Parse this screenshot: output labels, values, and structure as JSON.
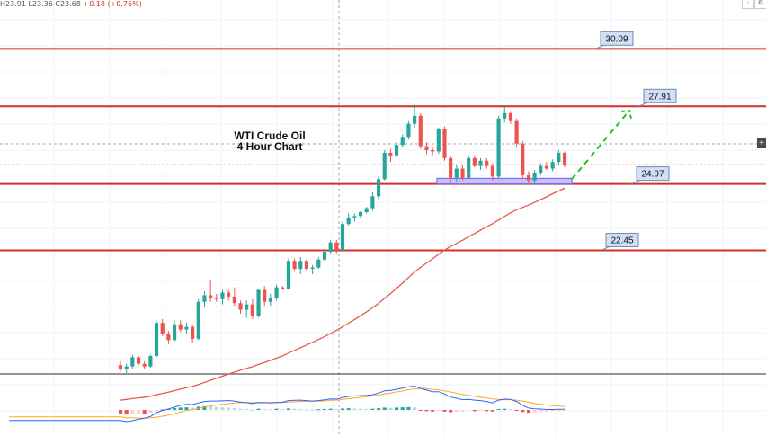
{
  "header": {
    "ohlc_text": "H23.91  L23.36  C23.68",
    "change_text": "+0.18 (+0.76%)"
  },
  "toolbar": {
    "arrow_icon": "down-arrow-icon",
    "copy_icon": "copy-icon",
    "plus_icon": "plus-icon"
  },
  "colors": {
    "up": "#26a69a",
    "down": "#ef5350",
    "level": "#d32f2f",
    "ma": "#e8594a",
    "macd": "#2962ff",
    "signal": "#ffa726",
    "arrow": "#19c719",
    "zone": "#7b6cf6"
  },
  "chart_data": [
    {
      "type": "candlestick",
      "title": "WTI Crude Oil\n4 Hour Chart",
      "ylim": [
        17.8,
        31.6
      ],
      "grid": true,
      "levels": [
        30.09,
        27.91,
        24.97,
        22.45
      ],
      "support_zone": [
        24.97,
        25.18
      ],
      "candles": [
        [
          18.1,
          18.25,
          17.85,
          17.95
        ],
        [
          17.95,
          18.15,
          17.8,
          18.05
        ],
        [
          18.05,
          18.5,
          17.95,
          18.4
        ],
        [
          18.4,
          18.45,
          18.1,
          18.15
        ],
        [
          18.15,
          18.25,
          17.95,
          18.05
        ],
        [
          18.05,
          18.5,
          18.0,
          18.45
        ],
        [
          18.45,
          19.8,
          18.4,
          19.7
        ],
        [
          19.7,
          19.85,
          19.2,
          19.3
        ],
        [
          19.3,
          19.4,
          18.9,
          19.05
        ],
        [
          19.05,
          19.8,
          19.0,
          19.65
        ],
        [
          19.65,
          19.8,
          19.35,
          19.45
        ],
        [
          19.45,
          19.7,
          19.3,
          19.55
        ],
        [
          19.55,
          19.65,
          18.95,
          19.1
        ],
        [
          19.1,
          20.6,
          19.05,
          20.5
        ],
        [
          20.5,
          20.9,
          20.3,
          20.75
        ],
        [
          20.75,
          21.3,
          20.5,
          20.65
        ],
        [
          20.65,
          20.8,
          20.5,
          20.6
        ],
        [
          20.6,
          20.95,
          20.4,
          20.85
        ],
        [
          20.85,
          20.95,
          20.55,
          20.7
        ],
        [
          20.7,
          21.05,
          20.35,
          20.45
        ],
        [
          20.45,
          20.55,
          20.05,
          20.2
        ],
        [
          20.2,
          20.55,
          19.9,
          20.4
        ],
        [
          20.4,
          20.6,
          19.85,
          19.95
        ],
        [
          19.95,
          21.0,
          19.9,
          20.95
        ],
        [
          20.95,
          21.1,
          20.35,
          20.5
        ],
        [
          20.5,
          20.8,
          20.35,
          20.65
        ],
        [
          20.65,
          21.15,
          20.55,
          21.05
        ],
        [
          21.05,
          21.1,
          20.95,
          21.0
        ],
        [
          21.0,
          22.15,
          20.95,
          22.05
        ],
        [
          22.05,
          22.15,
          21.65,
          21.75
        ],
        [
          21.75,
          22.2,
          21.55,
          22.05
        ],
        [
          22.05,
          22.1,
          21.65,
          21.75
        ],
        [
          21.75,
          21.9,
          21.55,
          21.8
        ],
        [
          21.8,
          22.2,
          21.75,
          22.1
        ],
        [
          22.1,
          22.45,
          22.05,
          22.4
        ],
        [
          22.4,
          22.85,
          22.3,
          22.75
        ],
        [
          22.75,
          22.85,
          22.35,
          22.45
        ],
        [
          22.45,
          23.55,
          22.4,
          23.45
        ],
        [
          23.45,
          23.85,
          23.4,
          23.7
        ],
        [
          23.7,
          23.85,
          23.55,
          23.75
        ],
        [
          23.75,
          23.95,
          23.65,
          23.9
        ],
        [
          23.9,
          24.1,
          23.85,
          24.05
        ],
        [
          24.05,
          24.65,
          23.95,
          24.5
        ],
        [
          24.5,
          25.25,
          24.4,
          25.15
        ],
        [
          25.15,
          26.25,
          25.1,
          26.15
        ],
        [
          26.15,
          26.3,
          25.8,
          26.05
        ],
        [
          26.05,
          26.55,
          26.0,
          26.45
        ],
        [
          26.45,
          26.85,
          26.35,
          26.75
        ],
        [
          26.75,
          27.35,
          26.65,
          27.25
        ],
        [
          27.25,
          28.0,
          27.1,
          27.55
        ],
        [
          27.55,
          27.65,
          26.3,
          26.4
        ],
        [
          26.4,
          26.55,
          26.1,
          26.25
        ],
        [
          26.25,
          26.35,
          26.05,
          26.2
        ],
        [
          26.2,
          27.1,
          26.1,
          27.05
        ],
        [
          27.05,
          27.15,
          25.85,
          25.95
        ],
        [
          25.95,
          26.05,
          24.95,
          25.2
        ],
        [
          25.2,
          25.7,
          25.05,
          25.55
        ],
        [
          25.55,
          25.7,
          25.1,
          25.2
        ],
        [
          25.2,
          26.05,
          25.15,
          25.95
        ],
        [
          25.95,
          26.05,
          25.6,
          25.65
        ],
        [
          25.65,
          25.95,
          25.5,
          25.85
        ],
        [
          25.85,
          25.95,
          25.55,
          25.65
        ],
        [
          25.65,
          25.75,
          25.1,
          25.25
        ],
        [
          25.25,
          27.55,
          25.2,
          27.45
        ],
        [
          27.45,
          27.9,
          27.3,
          27.65
        ],
        [
          27.65,
          27.7,
          27.25,
          27.35
        ],
        [
          27.35,
          27.45,
          26.35,
          26.5
        ],
        [
          26.5,
          26.6,
          25.15,
          25.3
        ],
        [
          25.3,
          25.45,
          24.95,
          25.1
        ],
        [
          25.1,
          25.5,
          24.95,
          25.4
        ],
        [
          25.4,
          25.75,
          25.3,
          25.65
        ],
        [
          25.65,
          25.8,
          25.5,
          25.55
        ],
        [
          25.55,
          25.9,
          25.45,
          25.8
        ],
        [
          25.8,
          26.25,
          25.7,
          26.15
        ],
        [
          26.15,
          26.2,
          25.6,
          25.7
        ]
      ],
      "ma_period": 50,
      "forecast_arrow": {
        "from": 25.15,
        "to": 27.75
      }
    },
    {
      "type": "bar",
      "indicator": "MACD",
      "histogram": [
        -0.18,
        -0.2,
        -0.17,
        -0.15,
        -0.16,
        -0.12,
        -0.05,
        0.02,
        0.04,
        0.08,
        0.1,
        0.11,
        0.1,
        0.14,
        0.16,
        0.15,
        0.12,
        0.11,
        0.1,
        0.08,
        0.05,
        0.04,
        0.02,
        0.05,
        0.04,
        0.03,
        0.05,
        0.04,
        0.06,
        0.05,
        0.04,
        0.03,
        0.02,
        0.03,
        0.04,
        0.05,
        0.04,
        0.06,
        0.07,
        0.06,
        0.05,
        0.04,
        0.05,
        0.07,
        0.1,
        0.09,
        0.1,
        0.11,
        0.12,
        0.11,
        -0.02,
        -0.05,
        -0.07,
        -0.03,
        -0.07,
        -0.1,
        -0.08,
        -0.07,
        -0.03,
        -0.05,
        -0.04,
        -0.05,
        -0.07,
        0.04,
        0.05,
        0.04,
        -0.02,
        -0.09,
        -0.12,
        -0.1,
        -0.08,
        -0.07,
        -0.06,
        -0.04,
        -0.03
      ],
      "macd": [
        -0.45,
        -0.5,
        -0.46,
        -0.4,
        -0.36,
        -0.28,
        -0.12,
        -0.02,
        0.04,
        0.12,
        0.2,
        0.24,
        0.23,
        0.3,
        0.36,
        0.38,
        0.38,
        0.39,
        0.4,
        0.38,
        0.33,
        0.31,
        0.27,
        0.32,
        0.31,
        0.3,
        0.32,
        0.33,
        0.4,
        0.41,
        0.42,
        0.4,
        0.38,
        0.4,
        0.43,
        0.47,
        0.46,
        0.53,
        0.58,
        0.6,
        0.61,
        0.62,
        0.65,
        0.72,
        0.82,
        0.84,
        0.88,
        0.93,
        0.99,
        1.02,
        0.92,
        0.85,
        0.78,
        0.78,
        0.68,
        0.55,
        0.5,
        0.44,
        0.45,
        0.42,
        0.4,
        0.36,
        0.3,
        0.42,
        0.46,
        0.45,
        0.36,
        0.2,
        0.08,
        0.05,
        0.04,
        0.02,
        0.02,
        0.03,
        0.03
      ],
      "signal": [
        -0.3,
        -0.33,
        -0.34,
        -0.35,
        -0.35,
        -0.34,
        -0.31,
        -0.27,
        -0.22,
        -0.16,
        -0.09,
        -0.03,
        0.02,
        0.07,
        0.12,
        0.17,
        0.21,
        0.24,
        0.27,
        0.3,
        0.31,
        0.32,
        0.32,
        0.32,
        0.32,
        0.32,
        0.32,
        0.32,
        0.33,
        0.35,
        0.36,
        0.37,
        0.37,
        0.38,
        0.39,
        0.41,
        0.42,
        0.45,
        0.48,
        0.51,
        0.54,
        0.57,
        0.6,
        0.63,
        0.68,
        0.72,
        0.77,
        0.81,
        0.86,
        0.9,
        0.92,
        0.91,
        0.88,
        0.86,
        0.82,
        0.77,
        0.71,
        0.66,
        0.62,
        0.58,
        0.55,
        0.51,
        0.47,
        0.45,
        0.44,
        0.44,
        0.42,
        0.38,
        0.33,
        0.28,
        0.24,
        0.21,
        0.18,
        0.16,
        0.14
      ]
    }
  ]
}
